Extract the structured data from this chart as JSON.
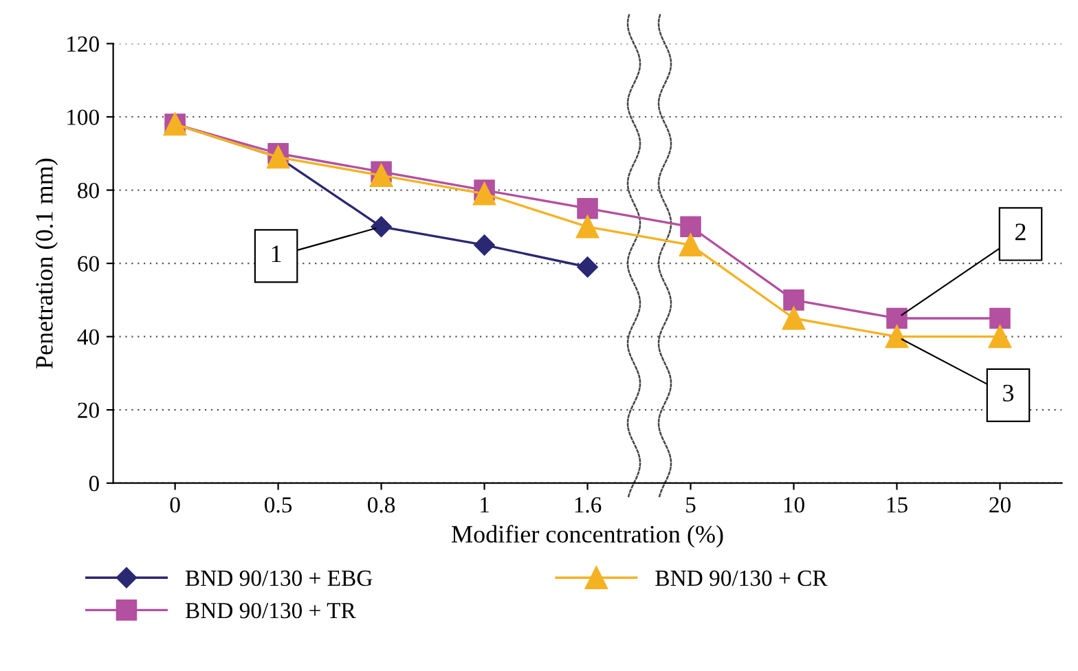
{
  "chart_data": {
    "type": "line",
    "xlabel": "Modifier concentration (%)",
    "ylabel": "Penetration (0.1 mm)",
    "categories": [
      "0",
      "0.5",
      "0.8",
      "1",
      "1.6",
      "5",
      "10",
      "15",
      "20"
    ],
    "series": [
      {
        "name": "BND 90/130 + EBG",
        "color": "#2b2873",
        "marker": "diamond",
        "values": [
          98,
          89,
          70,
          65,
          59,
          null,
          null,
          null,
          null
        ]
      },
      {
        "name": "BND 90/130 + TR",
        "color": "#b3509f",
        "marker": "square",
        "values": [
          98,
          90,
          85,
          80,
          75,
          70,
          50,
          45,
          45
        ]
      },
      {
        "name": "BND 90/130 + CR",
        "color": "#f4b223",
        "marker": "triangle",
        "values": [
          98,
          89,
          84,
          79,
          70,
          65,
          45,
          40,
          40
        ]
      }
    ],
    "ylim": [
      0,
      120
    ],
    "yticks": [
      0,
      20,
      40,
      60,
      80,
      100,
      120
    ],
    "grid": "y",
    "legend": "bottom",
    "line_style": "solid",
    "annotations": [
      {
        "text": "1",
        "x": "0.8",
        "y": 70
      },
      {
        "text": "2",
        "x": "15",
        "y": 45
      },
      {
        "text": "3",
        "x": "15",
        "y": 40
      }
    ]
  }
}
